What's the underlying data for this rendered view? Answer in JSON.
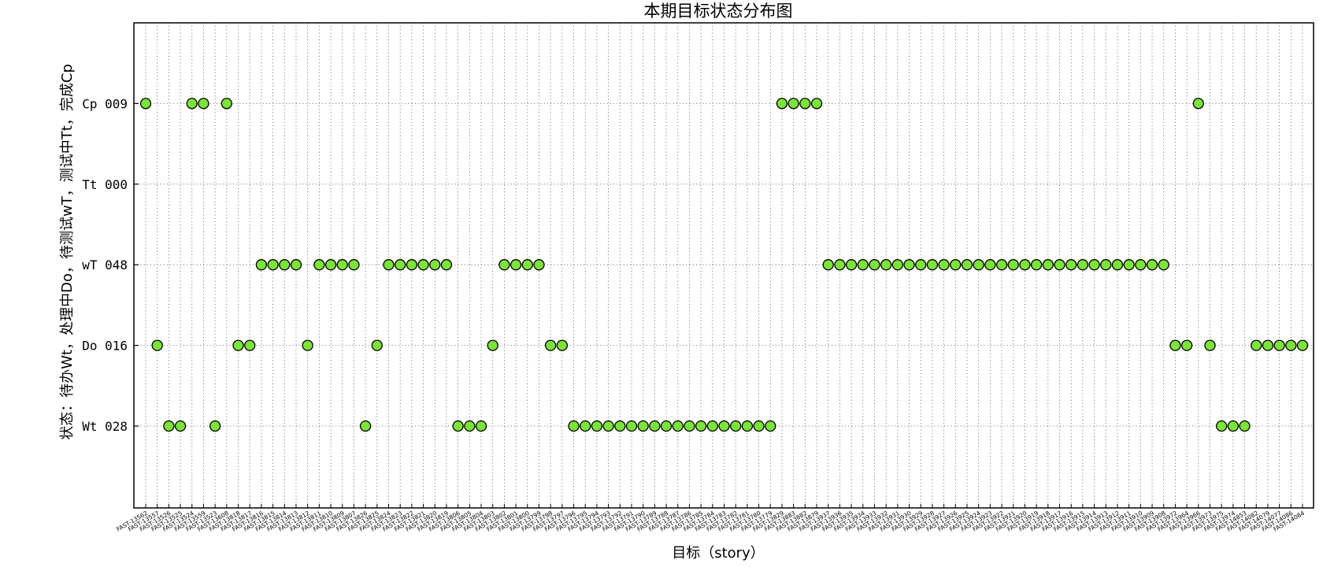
{
  "chart_data": {
    "type": "scatter",
    "title": "本期目标状态分布图",
    "xlabel": "目标（story）",
    "ylabel": "状态：待办Wt，处理中Do，待测试wT，测试中Tt，完成Cp",
    "grid": true,
    "marker_color": "#7be33a",
    "y_levels": [
      {
        "key": "Wt",
        "label": "Wt 028"
      },
      {
        "key": "Do",
        "label": "Do 016"
      },
      {
        "key": "wT",
        "label": "wT 048"
      },
      {
        "key": "Tt",
        "label": "Tt 000"
      },
      {
        "key": "Cp",
        "label": "Cp 009"
      }
    ],
    "points": [
      {
        "x": "FAST-13562",
        "y": "Cp"
      },
      {
        "x": "FAST-13557",
        "y": "Do"
      },
      {
        "x": "FAST-13526",
        "y": "Wt"
      },
      {
        "x": "FAST-13525",
        "y": "Wt"
      },
      {
        "x": "FAST-13524",
        "y": "Cp"
      },
      {
        "x": "FAST-13559",
        "y": "Cp"
      },
      {
        "x": "FAST-13523",
        "y": "Wt"
      },
      {
        "x": "FAST-13608",
        "y": "Cp"
      },
      {
        "x": "FAST-13818",
        "y": "Do"
      },
      {
        "x": "FAST-13817",
        "y": "Do"
      },
      {
        "x": "FAST-13816",
        "y": "wT"
      },
      {
        "x": "FAST-13815",
        "y": "wT"
      },
      {
        "x": "FAST-13814",
        "y": "wT"
      },
      {
        "x": "FAST-13813",
        "y": "wT"
      },
      {
        "x": "FAST-13812",
        "y": "Do"
      },
      {
        "x": "FAST-13811",
        "y": "wT"
      },
      {
        "x": "FAST-13810",
        "y": "wT"
      },
      {
        "x": "FAST-13809",
        "y": "wT"
      },
      {
        "x": "FAST-13807",
        "y": "wT"
      },
      {
        "x": "FAST-13826",
        "y": "Wt"
      },
      {
        "x": "FAST-13825",
        "y": "Do"
      },
      {
        "x": "FAST-13824",
        "y": "wT"
      },
      {
        "x": "FAST-13823",
        "y": "wT"
      },
      {
        "x": "FAST-13822",
        "y": "wT"
      },
      {
        "x": "FAST-13821",
        "y": "wT"
      },
      {
        "x": "FAST-13820",
        "y": "wT"
      },
      {
        "x": "FAST-13819",
        "y": "wT"
      },
      {
        "x": "FAST-13806",
        "y": "Wt"
      },
      {
        "x": "FAST-13805",
        "y": "Wt"
      },
      {
        "x": "FAST-13804",
        "y": "Wt"
      },
      {
        "x": "FAST-13803",
        "y": "Do"
      },
      {
        "x": "FAST-13802",
        "y": "wT"
      },
      {
        "x": "FAST-13801",
        "y": "wT"
      },
      {
        "x": "FAST-13800",
        "y": "wT"
      },
      {
        "x": "FAST-13799",
        "y": "wT"
      },
      {
        "x": "FAST-13798",
        "y": "Do"
      },
      {
        "x": "FAST-13797",
        "y": "Do"
      },
      {
        "x": "FAST-13796",
        "y": "Wt"
      },
      {
        "x": "FAST-13795",
        "y": "Wt"
      },
      {
        "x": "FAST-13794",
        "y": "Wt"
      },
      {
        "x": "FAST-13793",
        "y": "Wt"
      },
      {
        "x": "FAST-13792",
        "y": "Wt"
      },
      {
        "x": "FAST-13791",
        "y": "Wt"
      },
      {
        "x": "FAST-13790",
        "y": "Wt"
      },
      {
        "x": "FAST-13789",
        "y": "Wt"
      },
      {
        "x": "FAST-13788",
        "y": "Wt"
      },
      {
        "x": "FAST-13787",
        "y": "Wt"
      },
      {
        "x": "FAST-13786",
        "y": "Wt"
      },
      {
        "x": "FAST-13785",
        "y": "Wt"
      },
      {
        "x": "FAST-13784",
        "y": "Wt"
      },
      {
        "x": "FAST-13783",
        "y": "Wt"
      },
      {
        "x": "FAST-13782",
        "y": "Wt"
      },
      {
        "x": "FAST-13781",
        "y": "Wt"
      },
      {
        "x": "FAST-13780",
        "y": "Wt"
      },
      {
        "x": "FAST-13779",
        "y": "Wt"
      },
      {
        "x": "FAST-13829",
        "y": "Cp"
      },
      {
        "x": "FAST-13883",
        "y": "Cp"
      },
      {
        "x": "FAST-13882",
        "y": "Cp"
      },
      {
        "x": "FAST-13879",
        "y": "Cp"
      },
      {
        "x": "FAST-13937",
        "y": "wT"
      },
      {
        "x": "FAST-13936",
        "y": "wT"
      },
      {
        "x": "FAST-13935",
        "y": "wT"
      },
      {
        "x": "FAST-13934",
        "y": "wT"
      },
      {
        "x": "FAST-13933",
        "y": "wT"
      },
      {
        "x": "FAST-13932",
        "y": "wT"
      },
      {
        "x": "FAST-13931",
        "y": "wT"
      },
      {
        "x": "FAST-13930",
        "y": "wT"
      },
      {
        "x": "FAST-13929",
        "y": "wT"
      },
      {
        "x": "FAST-13928",
        "y": "wT"
      },
      {
        "x": "FAST-13927",
        "y": "wT"
      },
      {
        "x": "FAST-13926",
        "y": "wT"
      },
      {
        "x": "FAST-13925",
        "y": "wT"
      },
      {
        "x": "FAST-13924",
        "y": "wT"
      },
      {
        "x": "FAST-13923",
        "y": "wT"
      },
      {
        "x": "FAST-13922",
        "y": "wT"
      },
      {
        "x": "FAST-13921",
        "y": "wT"
      },
      {
        "x": "FAST-13920",
        "y": "wT"
      },
      {
        "x": "FAST-13919",
        "y": "wT"
      },
      {
        "x": "FAST-13918",
        "y": "wT"
      },
      {
        "x": "FAST-13917",
        "y": "wT"
      },
      {
        "x": "FAST-13916",
        "y": "wT"
      },
      {
        "x": "FAST-13915",
        "y": "wT"
      },
      {
        "x": "FAST-13914",
        "y": "wT"
      },
      {
        "x": "FAST-13913",
        "y": "wT"
      },
      {
        "x": "FAST-13912",
        "y": "wT"
      },
      {
        "x": "FAST-13911",
        "y": "wT"
      },
      {
        "x": "FAST-13910",
        "y": "wT"
      },
      {
        "x": "FAST-13909",
        "y": "wT"
      },
      {
        "x": "FAST-13908",
        "y": "wT"
      },
      {
        "x": "FAST-13972",
        "y": "Do"
      },
      {
        "x": "FAST-13964",
        "y": "Do"
      },
      {
        "x": "FAST-13966",
        "y": "Cp"
      },
      {
        "x": "FAST-13973",
        "y": "Do"
      },
      {
        "x": "FAST-13975",
        "y": "Wt"
      },
      {
        "x": "FAST-13974",
        "y": "Wt"
      },
      {
        "x": "FAST-14853",
        "y": "Wt"
      },
      {
        "x": "FAST-14082",
        "y": "Do"
      },
      {
        "x": "FAST-14079",
        "y": "Do"
      },
      {
        "x": "FAST-14077",
        "y": "Do"
      },
      {
        "x": "FAST-14086",
        "y": "Do"
      },
      {
        "x": "FAST-14084",
        "y": "Do"
      }
    ]
  }
}
